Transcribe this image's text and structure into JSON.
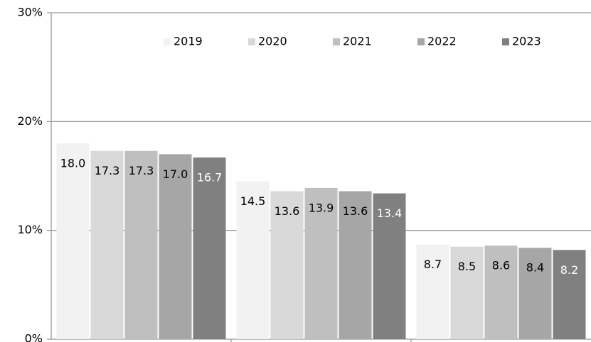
{
  "chart_data": {
    "type": "bar",
    "categories": [
      null,
      null,
      null
    ],
    "series": [
      {
        "name": "2019",
        "color": "#f2f2f2",
        "label_color": "#000000",
        "values": [
          18.0,
          14.5,
          8.7
        ],
        "value_labels": [
          "18.0",
          "14.5",
          "8.7"
        ]
      },
      {
        "name": "2020",
        "color": "#d9d9d9",
        "label_color": "#000000",
        "values": [
          17.3,
          13.6,
          8.5
        ],
        "value_labels": [
          "17.3",
          "13.6",
          "8.5"
        ]
      },
      {
        "name": "2021",
        "color": "#bfbfbf",
        "label_color": "#000000",
        "values": [
          17.3,
          13.9,
          8.6
        ],
        "value_labels": [
          "17.3",
          "13.9",
          "8.6"
        ]
      },
      {
        "name": "2022",
        "color": "#a6a6a6",
        "label_color": "#000000",
        "values": [
          17.0,
          13.6,
          8.4
        ],
        "value_labels": [
          "17.0",
          "13.6",
          "8.4"
        ]
      },
      {
        "name": "2023",
        "color": "#808080",
        "label_color": "#ffffff",
        "values": [
          16.7,
          13.4,
          8.2
        ],
        "value_labels": [
          "16.7",
          "13.4",
          "8.2"
        ]
      }
    ],
    "ylim": [
      0,
      30
    ],
    "yticks": [
      {
        "value": 0,
        "label": "0%"
      },
      {
        "value": 10,
        "label": "10%"
      },
      {
        "value": 20,
        "label": "20%"
      },
      {
        "value": 30,
        "label": "30%"
      }
    ],
    "grid": true,
    "legend": "top"
  }
}
